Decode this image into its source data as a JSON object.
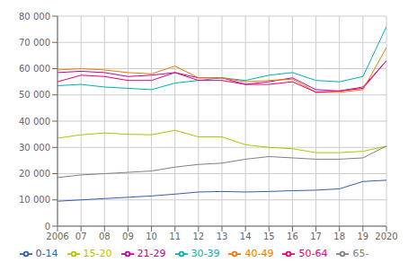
{
  "chart_data": {
    "type": "line",
    "x": [
      2006,
      2007,
      2008,
      2009,
      2010,
      2011,
      2012,
      2013,
      2014,
      2015,
      2016,
      2017,
      2018,
      2019,
      2020
    ],
    "series": [
      {
        "name": "0-14",
        "color": "#3061a8",
        "values": [
          9500,
          10000,
          10500,
          11000,
          11500,
          12200,
          13000,
          13200,
          13000,
          13200,
          13500,
          13700,
          14200,
          17000,
          17500
        ]
      },
      {
        "name": "15-20",
        "color": "#b5c200",
        "values": [
          33500,
          34800,
          35500,
          35000,
          34800,
          36500,
          34000,
          34000,
          31000,
          30000,
          29500,
          28000,
          28000,
          28500,
          30500
        ]
      },
      {
        "name": "21-29",
        "color": "#c000a0",
        "values": [
          58500,
          59000,
          58500,
          57000,
          57500,
          58500,
          56500,
          56500,
          54000,
          55000,
          56500,
          52000,
          51500,
          52500,
          63000
        ]
      },
      {
        "name": "30-39",
        "color": "#00b0b0",
        "values": [
          53500,
          54000,
          53000,
          52500,
          52000,
          54500,
          55500,
          56500,
          55500,
          57500,
          58500,
          55500,
          55000,
          57000,
          76000
        ]
      },
      {
        "name": "40-49",
        "color": "#f07800",
        "values": [
          59500,
          60000,
          59500,
          58500,
          58000,
          61000,
          56500,
          56500,
          55000,
          55500,
          56000,
          51000,
          51000,
          52000,
          68000
        ]
      },
      {
        "name": "50-64",
        "color": "#e8006e",
        "values": [
          55000,
          57500,
          57000,
          55500,
          55500,
          58500,
          55500,
          55500,
          54000,
          54000,
          55000,
          51000,
          51500,
          53000,
          63000
        ]
      },
      {
        "name": "65-",
        "color": "#808080",
        "values": [
          18500,
          19500,
          20000,
          20500,
          21000,
          22500,
          23500,
          24000,
          25500,
          26500,
          26000,
          25500,
          25500,
          26000,
          30500
        ]
      }
    ],
    "xlim": [
      2006,
      2020
    ],
    "xticks": [
      2006,
      {
        "value": 2007,
        "label": "07"
      },
      {
        "value": 2008,
        "label": "08"
      },
      {
        "value": 2009,
        "label": "09"
      },
      {
        "value": 2010,
        "label": "10"
      },
      {
        "value": 2011,
        "label": "11"
      },
      {
        "value": 2012,
        "label": "12"
      },
      {
        "value": 2013,
        "label": "13"
      },
      {
        "value": 2014,
        "label": "14"
      },
      {
        "value": 2015,
        "label": "15"
      },
      {
        "value": 2016,
        "label": "16"
      },
      {
        "value": 2017,
        "label": "17"
      },
      {
        "value": 2018,
        "label": "18"
      },
      {
        "value": 2019,
        "label": "19"
      },
      2020
    ],
    "ylim": [
      0,
      80000
    ],
    "yticks": [
      0,
      {
        "value": 10000,
        "label": "10 000"
      },
      {
        "value": 20000,
        "label": "20 000"
      },
      {
        "value": 30000,
        "label": "30 000"
      },
      {
        "value": 40000,
        "label": "40 000"
      },
      {
        "value": 50000,
        "label": "50 000"
      },
      {
        "value": 60000,
        "label": "60 000"
      },
      {
        "value": 70000,
        "label": "70 000"
      },
      {
        "value": 80000,
        "label": "80 000"
      }
    ],
    "grid": true,
    "legend": "bottom"
  }
}
